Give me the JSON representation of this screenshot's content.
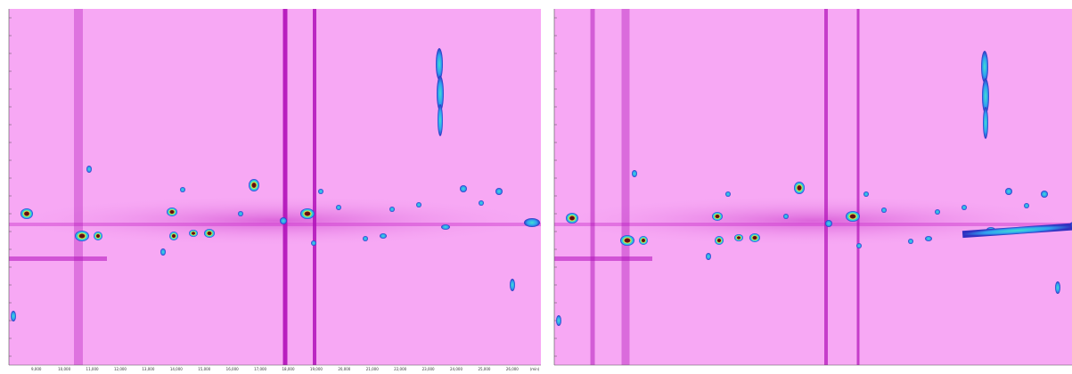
{
  "x_axis_labels": [
    "9,000",
    "10,000",
    "11,000",
    "12,000",
    "13,000",
    "14,000",
    "15,000",
    "16,000",
    "17,000",
    "18,000",
    "19,000",
    "20,000",
    "21,000",
    "22,000",
    "23,000",
    "24,000",
    "25,000",
    "26,000"
  ],
  "x_axis_unit": "(min)"
}
